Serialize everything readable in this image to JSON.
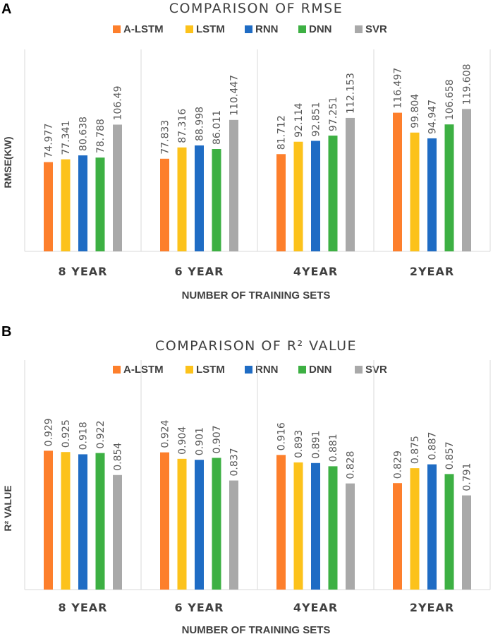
{
  "colors": {
    "A-LSTM": "#fd7f2c",
    "LSTM": "#fcc21b",
    "RNN": "#1f6cc4",
    "DNN": "#3db043",
    "SVR": "#a9a9a9"
  },
  "chart_data": [
    {
      "panel": "A",
      "type": "bar",
      "title": "COMPARISON OF RMSE",
      "xlabel": "NUMBER OF TRAINING SETS",
      "ylabel": "RMSE(KW)",
      "ylim": [
        0,
        140
      ],
      "grid": false,
      "legend_position": "top",
      "categories": [
        "8 YEAR",
        "6 YEAR",
        "4YEAR",
        "2YEAR"
      ],
      "series": [
        {
          "name": "A-LSTM",
          "values": [
            74.977,
            77.833,
            81.712,
            116.497
          ],
          "labels": [
            "74.977",
            "77.833",
            "81.712",
            "116.497"
          ]
        },
        {
          "name": "LSTM",
          "values": [
            77.341,
            87.316,
            92.114,
            99.804
          ],
          "labels": [
            "77.341",
            "87.316",
            "92.114",
            "99.804"
          ]
        },
        {
          "name": "RNN",
          "values": [
            80.638,
            88.998,
            92.851,
            94.947
          ],
          "labels": [
            "80.638",
            "88.998",
            "92.851",
            "94.947"
          ]
        },
        {
          "name": "DNN",
          "values": [
            78.788,
            86.011,
            97.251,
            106.658
          ],
          "labels": [
            "78.788",
            "86.011",
            "97.251",
            "106.658"
          ]
        },
        {
          "name": "SVR",
          "values": [
            106.49,
            110.447,
            112.153,
            119.608
          ],
          "labels": [
            "106.49",
            "110.447",
            "112.153",
            "119.608"
          ]
        }
      ]
    },
    {
      "panel": "B",
      "type": "bar",
      "title": "COMPARISON OF R² VALUE",
      "xlabel": "NUMBER OF TRAINING SETS",
      "ylabel": "R² VALUE",
      "ylim": [
        0.5,
        1.1
      ],
      "grid": false,
      "legend_position": "top",
      "categories": [
        "8 YEAR",
        "6 YEAR",
        "4YEAR",
        "2YEAR"
      ],
      "series": [
        {
          "name": "A-LSTM",
          "values": [
            0.929,
            0.924,
            0.916,
            0.829
          ],
          "labels": [
            "0.929",
            "0.924",
            "0.916",
            "0.829"
          ]
        },
        {
          "name": "LSTM",
          "values": [
            0.925,
            0.904,
            0.893,
            0.875
          ],
          "labels": [
            "0.925",
            "0.904",
            "0.893",
            "0.875"
          ]
        },
        {
          "name": "RNN",
          "values": [
            0.918,
            0.901,
            0.891,
            0.887
          ],
          "labels": [
            "0.918",
            "0.901",
            "0.891",
            "0.887"
          ]
        },
        {
          "name": "DNN",
          "values": [
            0.922,
            0.907,
            0.881,
            0.857
          ],
          "labels": [
            "0.922",
            "0.907",
            "0.881",
            "0.857"
          ]
        },
        {
          "name": "SVR",
          "values": [
            0.854,
            0.837,
            0.828,
            0.791
          ],
          "labels": [
            "0.854",
            "0.837",
            "0.828",
            "0.791"
          ]
        }
      ]
    }
  ]
}
